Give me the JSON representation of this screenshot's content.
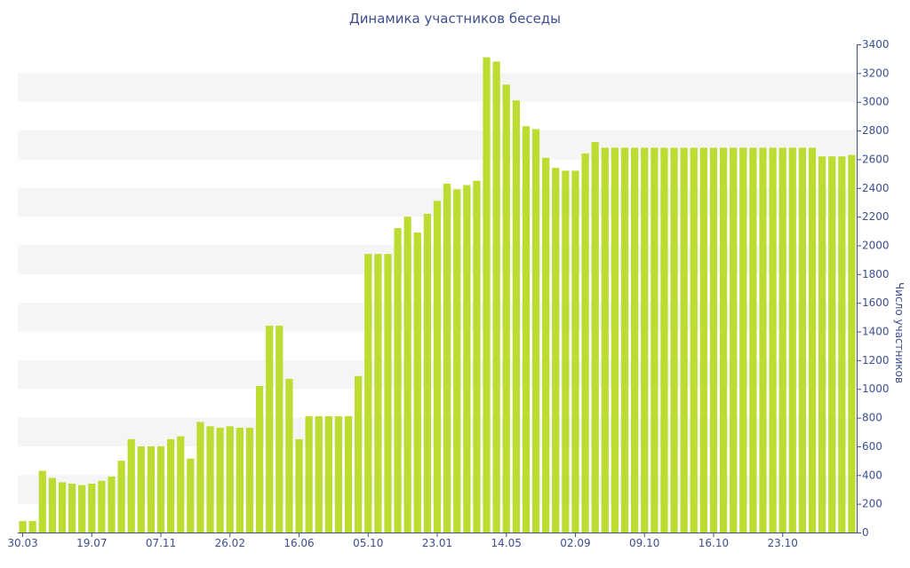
{
  "chart_data": {
    "type": "bar",
    "title": "Динамика участников беседы",
    "ylabel": "Число участников",
    "xlabel": "",
    "ylim": [
      0,
      3400
    ],
    "y_ticks": [
      0,
      200,
      400,
      600,
      800,
      1000,
      1200,
      1400,
      1600,
      1800,
      2000,
      2200,
      2400,
      2600,
      2800,
      3000,
      3200,
      3400
    ],
    "y_axis_side": "right",
    "grid": "alternating horizontal bands",
    "bar_color": "#bddc32",
    "axis_color": "#3d4f8f",
    "band_color": "#f5f5f5",
    "x_tick_labels": [
      {
        "index": 0,
        "label": "30.03"
      },
      {
        "index": 7,
        "label": "19.07"
      },
      {
        "index": 14,
        "label": "07.11"
      },
      {
        "index": 21,
        "label": "26.02"
      },
      {
        "index": 28,
        "label": "16.06"
      },
      {
        "index": 35,
        "label": "05.10"
      },
      {
        "index": 42,
        "label": "23.01"
      },
      {
        "index": 49,
        "label": "14.05"
      },
      {
        "index": 56,
        "label": "02.09"
      },
      {
        "index": 63,
        "label": "09.10"
      },
      {
        "index": 70,
        "label": "16.10"
      },
      {
        "index": 77,
        "label": "23.10"
      }
    ],
    "values": [
      80,
      80,
      430,
      380,
      350,
      340,
      330,
      340,
      360,
      390,
      500,
      650,
      600,
      600,
      600,
      650,
      670,
      515,
      770,
      740,
      730,
      740,
      730,
      730,
      1020,
      1440,
      1440,
      1070,
      650,
      810,
      810,
      810,
      810,
      810,
      1090,
      1940,
      1940,
      1940,
      2120,
      2200,
      2090,
      2220,
      2310,
      2430,
      2390,
      2420,
      2450,
      3310,
      3280,
      3120,
      3010,
      2830,
      2810,
      2610,
      2540,
      2520,
      2520,
      2640,
      2720,
      2680,
      2680,
      2680,
      2680,
      2680,
      2680,
      2680,
      2680,
      2680,
      2680,
      2680,
      2680,
      2680,
      2680,
      2680,
      2680,
      2680,
      2680,
      2680,
      2680,
      2680,
      2680,
      2620,
      2620,
      2620,
      2630
    ]
  }
}
